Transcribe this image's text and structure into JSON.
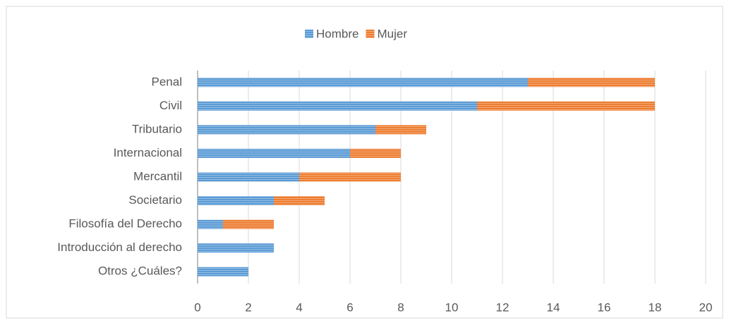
{
  "chart_data": {
    "type": "stacked_barh",
    "categories": [
      "Penal",
      "Civil",
      "Tributario",
      "Internacional",
      "Mercantil",
      "Societario",
      "Filosofía del Derecho",
      "Introducción al derecho",
      "Otros ¿Cuáles?"
    ],
    "series": [
      {
        "name": "Hombre",
        "color": "#5b9bd5",
        "values": [
          13,
          11,
          7,
          6,
          4,
          3,
          1,
          3,
          2
        ]
      },
      {
        "name": "Mujer",
        "color": "#ed7d31",
        "values": [
          5,
          7,
          2,
          2,
          4,
          2,
          2,
          0,
          0
        ]
      }
    ],
    "xlim": [
      0,
      20
    ],
    "xticks": [
      0,
      2,
      4,
      6,
      8,
      10,
      12,
      14,
      16,
      18,
      20
    ],
    "grid": true,
    "legend": "top"
  }
}
